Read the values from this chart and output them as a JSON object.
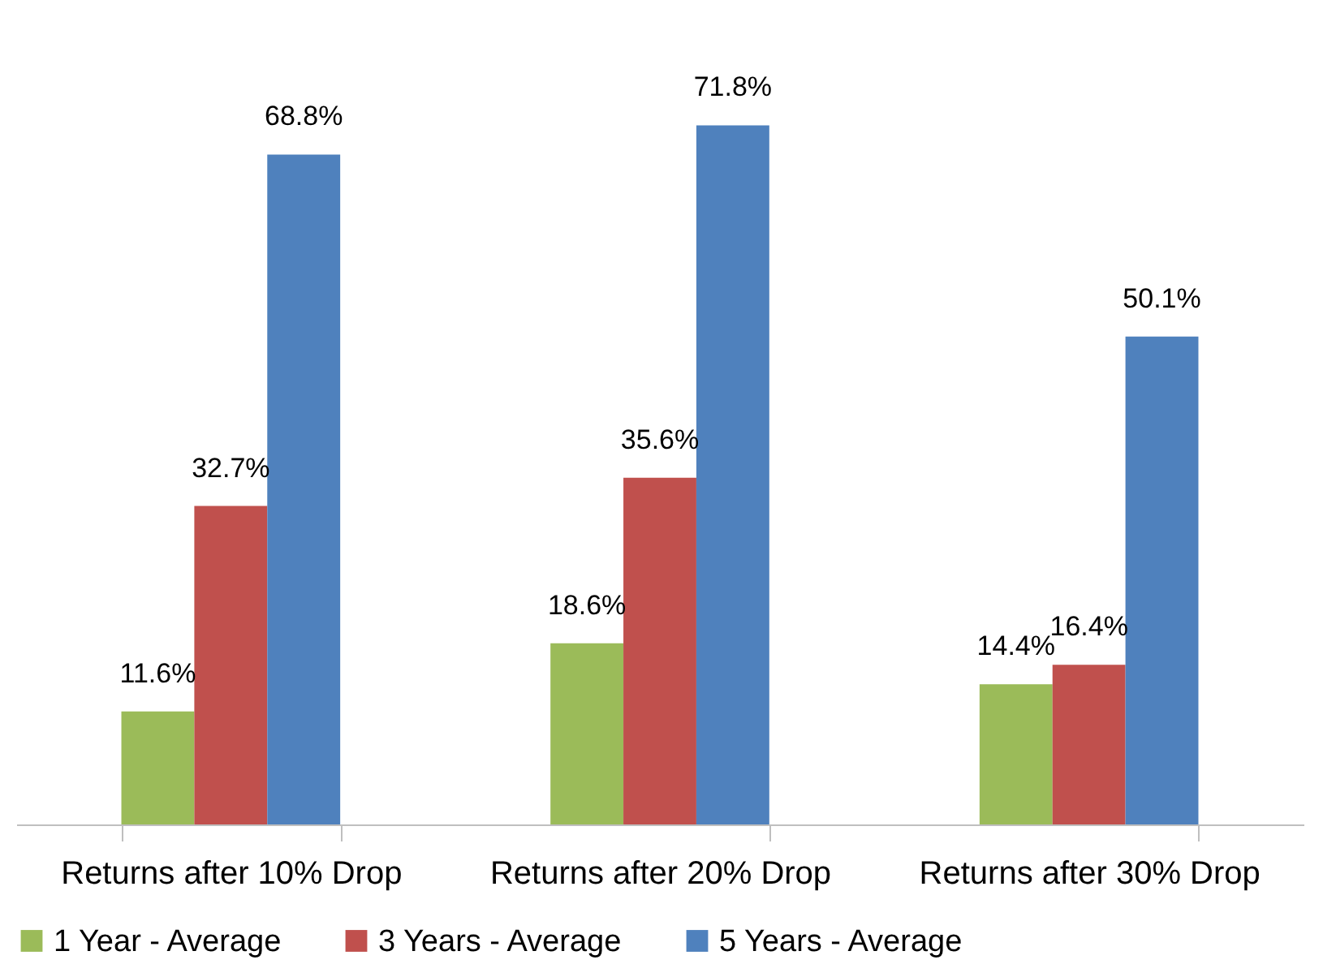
{
  "chart_data": {
    "type": "bar",
    "categories": [
      "Returns after 10% Drop",
      "Returns after 20% Drop",
      "Returns after 30% Drop"
    ],
    "series": [
      {
        "name": "1 Year - Average",
        "color": "#9bbb59",
        "values": [
          11.6,
          18.6,
          14.4
        ],
        "value_labels": [
          "11.6%",
          "18.6%",
          "14.4%"
        ]
      },
      {
        "name": "3 Years - Average",
        "color": "#c0504d",
        "values": [
          32.7,
          35.6,
          16.4
        ],
        "value_labels": [
          "32.7%",
          "35.6%",
          "16.4%"
        ]
      },
      {
        "name": "5 Years - Average",
        "color": "#4f81bd",
        "values": [
          68.8,
          71.8,
          50.1
        ],
        "value_labels": [
          "68.8%",
          "71.8%",
          "50.1%"
        ]
      }
    ],
    "grid": false,
    "legend": "bottom"
  }
}
